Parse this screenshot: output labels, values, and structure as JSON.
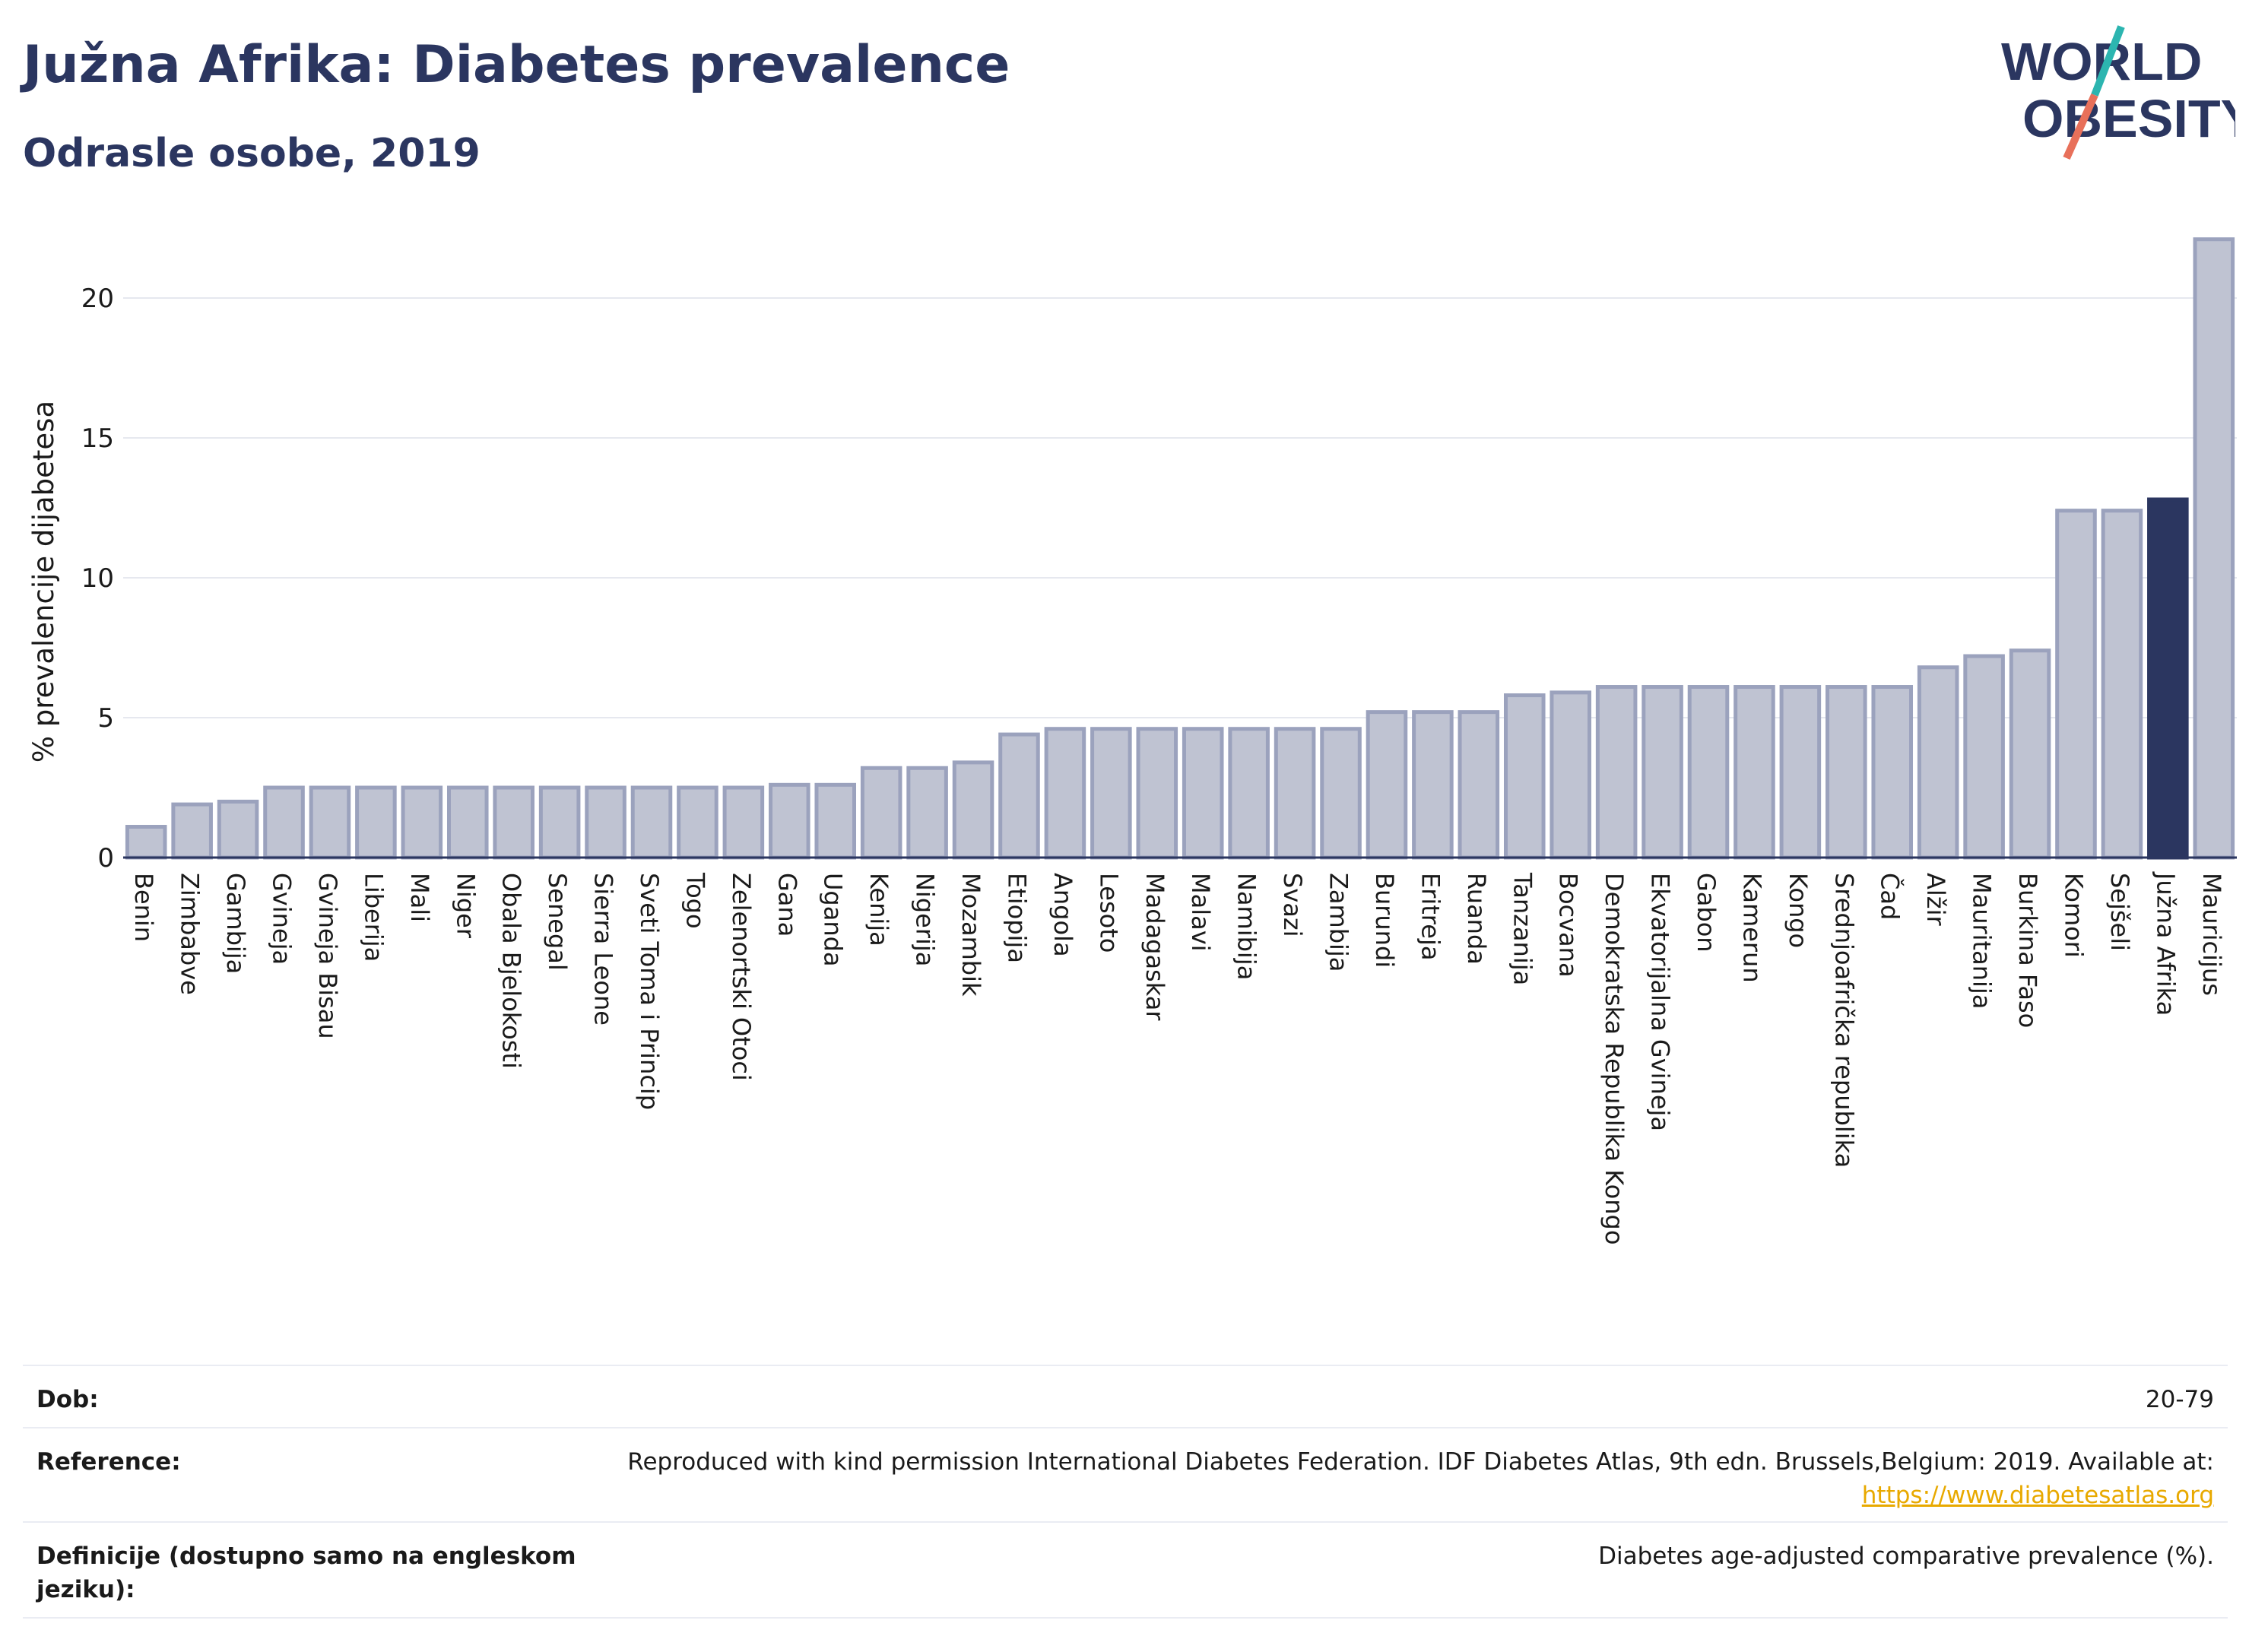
{
  "header": {
    "title": "Južna Afrika: Diabetes prevalence",
    "subtitle": "Odrasle osobe, 2019"
  },
  "logo": {
    "line1": "WORLD",
    "line2": "OBESITY",
    "accent_teal": "#2cb5b0",
    "accent_coral": "#e8705a"
  },
  "colors": {
    "bar": "#bfc3d2",
    "bar_stroke": "#9ba2bd",
    "highlight": "#2b3660",
    "grid": "#e6e8ef",
    "axis": "#2b3660"
  },
  "chart_data": {
    "type": "bar",
    "ylabel": "% prevalencije dijabetesa",
    "ylim": [
      0,
      22.5
    ],
    "yticks": [
      0,
      5,
      10,
      15,
      20
    ],
    "highlight": "Južna Afrika",
    "grid": true,
    "categories": [
      "Benin",
      "Zimbabve",
      "Gambija",
      "Gvineja",
      "Gvineja Bisau",
      "Liberija",
      "Mali",
      "Niger",
      "Obala Bjelokosti",
      "Senegal",
      "Sierra Leone",
      "Sveti Toma i Princip",
      "Togo",
      "Zelenortski Otoci",
      "Gana",
      "Uganda",
      "Kenija",
      "Nigerija",
      "Mozambik",
      "Etiopija",
      "Angola",
      "Lesoto",
      "Madagaskar",
      "Malavi",
      "Namibija",
      "Svazi",
      "Zambija",
      "Burundi",
      "Eritreja",
      "Ruanda",
      "Tanzanija",
      "Bocvana",
      "Demokratska Republika Kongo",
      "Ekvatorijalna Gvineja",
      "Gabon",
      "Kamerun",
      "Kongo",
      "Srednjoafrička republika",
      "Čad",
      "Alžir",
      "Mauritanija",
      "Burkina Faso",
      "Komori",
      "Sejšeli",
      "Južna Afrika",
      "Mauricijus"
    ],
    "values": [
      1.1,
      1.9,
      2.0,
      2.5,
      2.5,
      2.5,
      2.5,
      2.5,
      2.5,
      2.5,
      2.5,
      2.5,
      2.5,
      2.5,
      2.6,
      2.6,
      3.2,
      3.2,
      3.4,
      4.4,
      4.6,
      4.6,
      4.6,
      4.6,
      4.6,
      4.6,
      4.6,
      5.2,
      5.2,
      5.2,
      5.8,
      5.9,
      6.1,
      6.1,
      6.1,
      6.1,
      6.1,
      6.1,
      6.1,
      6.8,
      7.2,
      7.4,
      12.4,
      12.4,
      12.8,
      22.1
    ]
  },
  "info_table": {
    "rows": [
      {
        "label": "Dob:",
        "value": "20-79"
      },
      {
        "label": "Reference:",
        "value": "Reproduced with kind permission International Diabetes Federation. IDF Diabetes Atlas, 9th edn. Brussels,Belgium: 2019. Available at:",
        "link": "https://www.diabetesatlas.org"
      },
      {
        "label": "Definicije (dostupno samo na engleskom jeziku):",
        "value": "Diabetes age-adjusted comparative prevalence (%)."
      }
    ]
  }
}
